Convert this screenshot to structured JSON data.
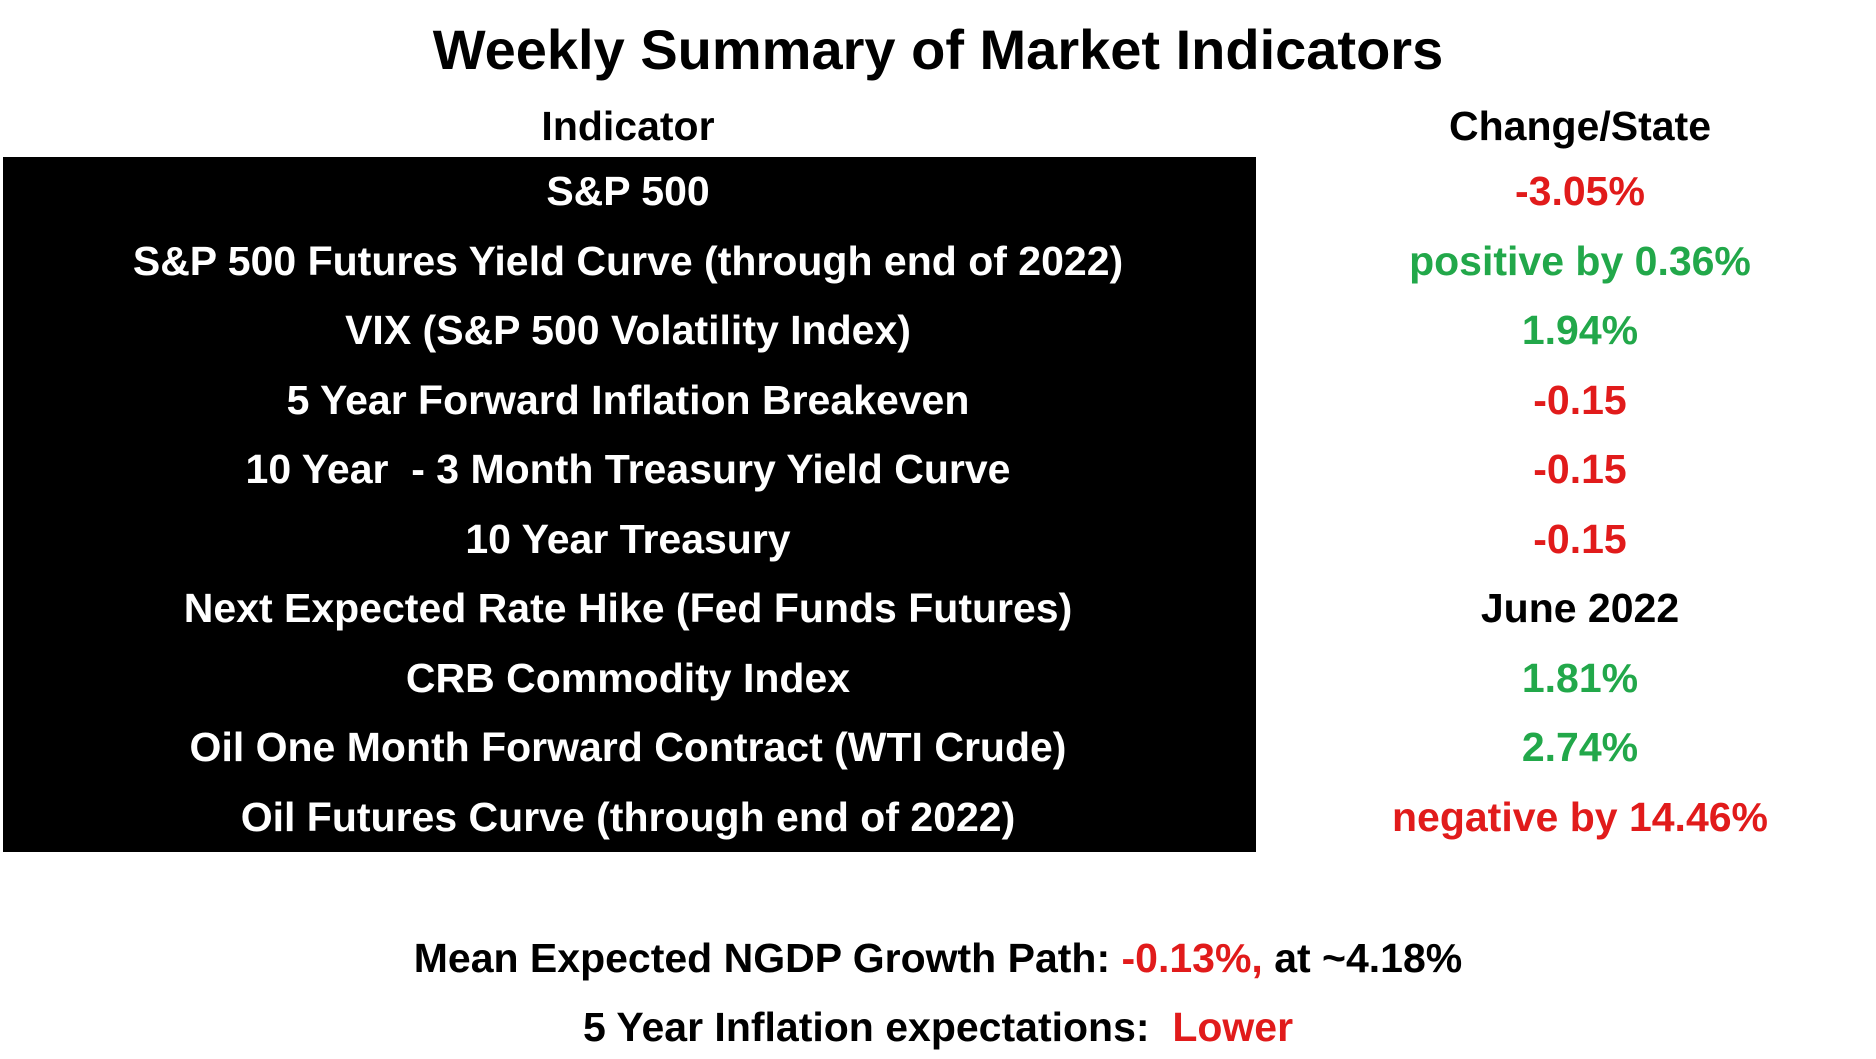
{
  "title": "Weekly Summary of Market Indicators",
  "columns": {
    "indicator": "Indicator",
    "change": "Change/State"
  },
  "colors": {
    "negative": "#e11b1b",
    "positive": "#22a84a",
    "neutral": "#000000"
  },
  "rows": [
    {
      "indicator": "S&P 500",
      "value": "-3.05%",
      "tone": "red"
    },
    {
      "indicator": "S&P 500 Futures Yield Curve (through end of 2022)",
      "value": "positive by 0.36%",
      "tone": "green"
    },
    {
      "indicator": "VIX (S&P 500 Volatility Index)",
      "value": "1.94%",
      "tone": "green"
    },
    {
      "indicator": "5 Year Forward Inflation Breakeven",
      "value": "-0.15",
      "tone": "red"
    },
    {
      "indicator": "10 Year  - 3 Month Treasury Yield Curve",
      "value": "-0.15",
      "tone": "red"
    },
    {
      "indicator": "10 Year Treasury",
      "value": "-0.15",
      "tone": "red"
    },
    {
      "indicator": "Next Expected Rate Hike (Fed Funds Futures)",
      "value": "June 2022",
      "tone": "black"
    },
    {
      "indicator": "CRB Commodity Index",
      "value": "1.81%",
      "tone": "green"
    },
    {
      "indicator": "Oil One Month Forward Contract (WTI Crude)",
      "value": "2.74%",
      "tone": "green"
    },
    {
      "indicator": "Oil Futures Curve (through end of 2022)",
      "value": "negative by 14.46%",
      "tone": "red"
    }
  ],
  "summary": {
    "ngdp_label": "Mean Expected NGDP Growth Path: ",
    "ngdp_change": "-0.13%,",
    "ngdp_level": " at ~4.18%",
    "inflation_label": "5 Year Inflation expectations:  ",
    "inflation_state": "Lower"
  }
}
